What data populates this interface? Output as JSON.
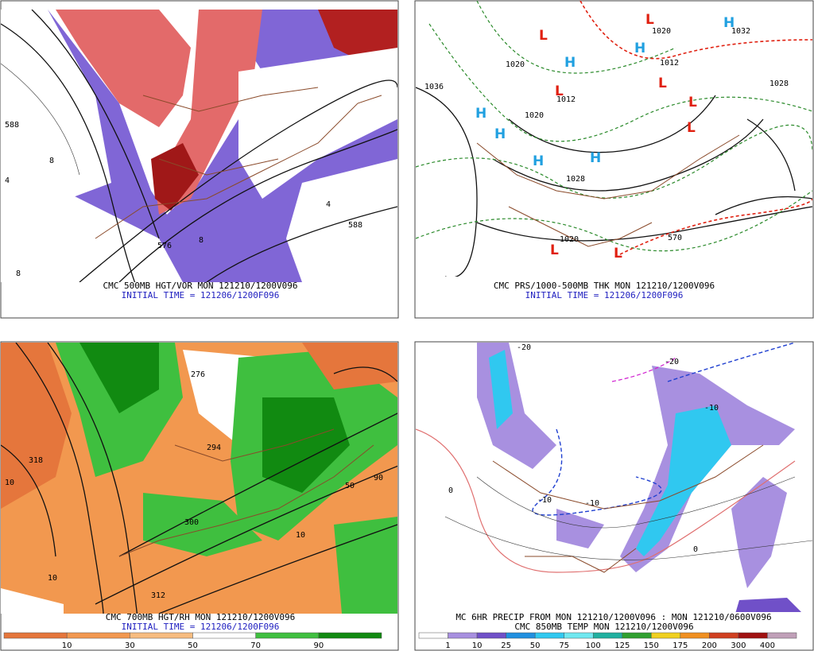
{
  "panels": [
    {
      "caption": "CMC 500MB HGT/VOR MON 121210/1200V096",
      "initial_time": "INITIAL TIME = 121206/1200F096",
      "labels": [
        "588",
        "576",
        "588",
        "8",
        "4",
        "8",
        "4",
        "8"
      ]
    },
    {
      "caption": "CMC PRS/1000-500MB THK MON 121210/1200V096",
      "initial_time": "INITIAL TIME = 121206/1200F096",
      "highs": [
        "H",
        "H",
        "H",
        "H",
        "H",
        "H",
        "H"
      ],
      "lows": [
        "L",
        "L",
        "L",
        "L",
        "L",
        "L",
        "L",
        "L"
      ],
      "labels": [
        "1036",
        "1020",
        "1012",
        "1020",
        "1028",
        "1020",
        "1032",
        "1028",
        "570",
        "1012",
        "1020"
      ]
    },
    {
      "caption": "CMC 700MB HGT/RH MON 121210/1200V096",
      "initial_time": "INITIAL TIME = 121206/1200F096",
      "labels": [
        "318",
        "300",
        "312",
        "294",
        "276",
        "10",
        "10",
        "90",
        "50",
        "10"
      ],
      "colorbar": {
        "labels": [
          "10",
          "30",
          "50",
          "70",
          "90"
        ],
        "colors": [
          "#e5763c",
          "#f2984f",
          "#f7bc80",
          "#ffffff",
          "#3fbf3f",
          "#118a11"
        ]
      }
    },
    {
      "caption": "MC 6HR PRECIP FROM MON 121210/1200V096 : MON 121210/0600V096",
      "subcaption": "CMC 850MB TEMP MON 121210/1200V096",
      "labels": [
        "-10",
        "-10",
        "-20",
        "0",
        "-10",
        "0",
        "-20"
      ],
      "colorbar": {
        "labels": [
          "1",
          "10",
          "25",
          "50",
          "75",
          "100",
          "125",
          "150",
          "175",
          "200",
          "300",
          "400"
        ],
        "colors": [
          "#ffffff",
          "#a890e0",
          "#7050c8",
          "#2090e0",
          "#30c8f0",
          "#70e8f0",
          "#20b0a0",
          "#30a030",
          "#f0d020",
          "#f09020",
          "#d04020",
          "#a01010",
          "#c0a0b8"
        ]
      }
    }
  ]
}
